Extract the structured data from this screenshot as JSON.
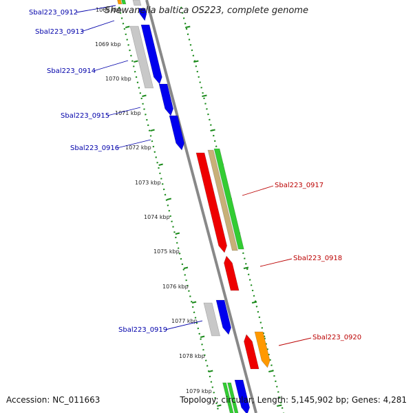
{
  "title": "Shewanella baltica OS223, complete genome",
  "footer": {
    "accession": "Accession: NC_011663",
    "topology": "Topology: circular; Length: 5,145,902 bp; Genes: 4,281"
  },
  "kbp_labels": [
    "1068 kbp",
    "1069 kbp",
    "1070 kbp",
    "1071 kbp",
    "1072 kbp",
    "1073 kbp",
    "1074 kbp",
    "1075 kbp",
    "1076 kbp",
    "1077 kbp",
    "1078 kbp",
    "1079 kbp"
  ],
  "gene_labels": {
    "left": [
      "Sbal223_0912",
      "Sbal223_0913",
      "Sbal223_0914",
      "Sbal223_0915",
      "Sbal223_0916",
      "Sbal223_0919"
    ],
    "right": [
      "Sbal223_0917",
      "Sbal223_0918",
      "Sbal223_0920"
    ]
  },
  "colors": {
    "backbone": "#888888",
    "ruler": "#1a8a1a",
    "forward_gene": "#0000ee",
    "reverse_gene": "#ee0000",
    "grey_feature": "#c8c8c8",
    "tan_feature": "#c8b078",
    "green_feature": "#33cc33",
    "orange_feature": "#ff9900",
    "left_label": "#0000aa",
    "right_label": "#bb0000"
  }
}
